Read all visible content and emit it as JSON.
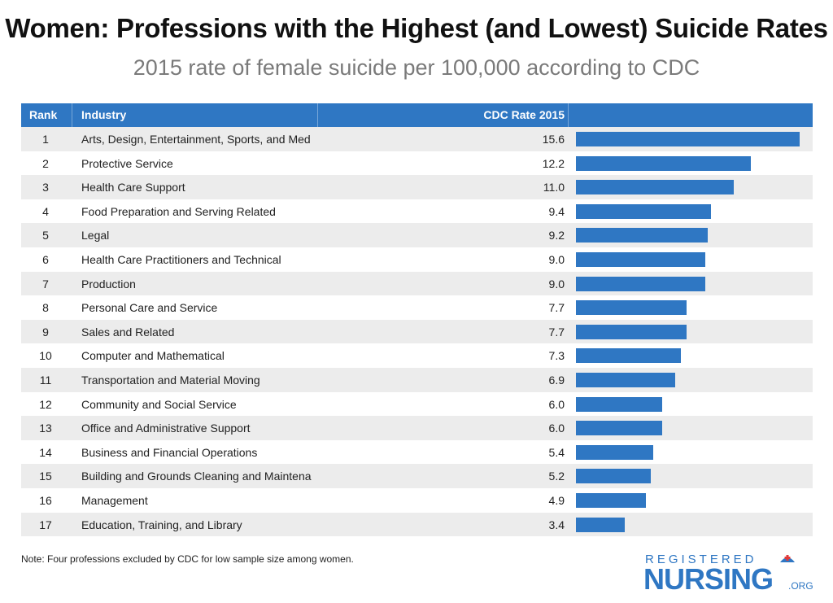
{
  "title": "Women: Professions with the Highest (and Lowest) Suicide Rates",
  "subtitle": "2015 rate of female suicide per 100,000 according to CDC",
  "columns": {
    "rank": "Rank",
    "industry": "Industry",
    "rate": "CDC Rate 2015"
  },
  "note": "Note: Four professions excluded by CDC for low sample size among women.",
  "logo": {
    "top": "REGISTERED",
    "main": "NURSING",
    "org": ".ORG"
  },
  "colors": {
    "header": "#2f77c3",
    "bar": "#2f77c3",
    "alt_row": "#ececec"
  },
  "chart_data": {
    "type": "bar",
    "orientation": "horizontal",
    "title": "Women: Professions with the Highest (and Lowest) Suicide Rates",
    "subtitle": "2015 rate of female suicide per 100,000 according to CDC",
    "xlim": [
      0,
      15.6
    ],
    "rows": [
      {
        "rank": "1",
        "industry": "Arts, Design, Entertainment, Sports, and Med",
        "rate": 15.6
      },
      {
        "rank": "2",
        "industry": "Protective Service",
        "rate": 12.2
      },
      {
        "rank": "3",
        "industry": "Health Care Support",
        "rate": 11.0
      },
      {
        "rank": "4",
        "industry": "Food Preparation and Serving Related",
        "rate": 9.4
      },
      {
        "rank": "5",
        "industry": "Legal",
        "rate": 9.2
      },
      {
        "rank": "6",
        "industry": "Health Care Practitioners and Technical",
        "rate": 9.0
      },
      {
        "rank": "7",
        "industry": "Production",
        "rate": 9.0
      },
      {
        "rank": "8",
        "industry": "Personal Care and Service",
        "rate": 7.7
      },
      {
        "rank": "9",
        "industry": "Sales and Related",
        "rate": 7.7
      },
      {
        "rank": "10",
        "industry": "Computer and Mathematical",
        "rate": 7.3
      },
      {
        "rank": "11",
        "industry": "Transportation and Material Moving",
        "rate": 6.9
      },
      {
        "rank": "12",
        "industry": "Community and Social Service",
        "rate": 6.0
      },
      {
        "rank": "13",
        "industry": "Office and Administrative Support",
        "rate": 6.0
      },
      {
        "rank": "14",
        "industry": "Business and Financial Operations",
        "rate": 5.4
      },
      {
        "rank": "15",
        "industry": "Building and Grounds Cleaning and Maintena",
        "rate": 5.2
      },
      {
        "rank": "16",
        "industry": "Management",
        "rate": 4.9
      },
      {
        "rank": "17",
        "industry": "Education, Training, and Library",
        "rate": 3.4
      }
    ]
  }
}
